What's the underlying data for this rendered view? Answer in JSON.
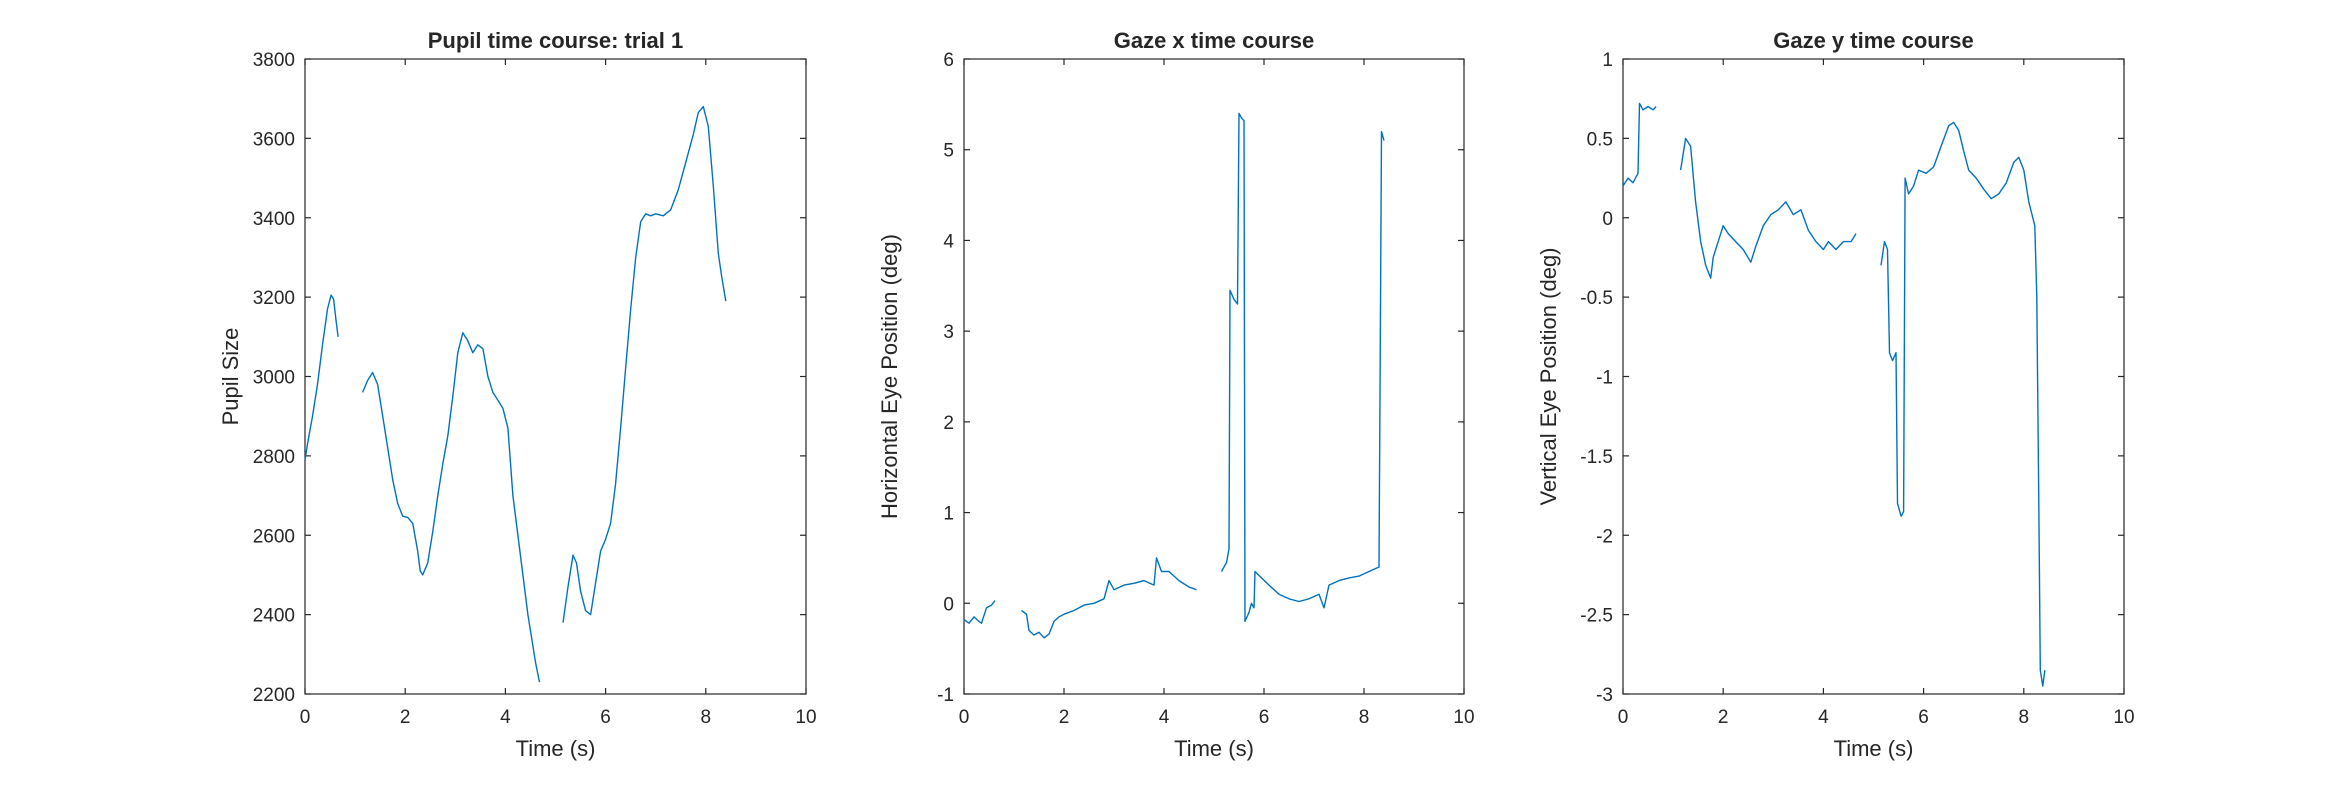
{
  "figure": {
    "line_color": "#0072BD",
    "axes_color": "#262626",
    "background": "#ffffff"
  },
  "chart_data": [
    {
      "type": "line",
      "title": "Pupil time course: trial 1",
      "xlabel": "Time (s)",
      "ylabel": "Pupil Size",
      "xlim": [
        0,
        10
      ],
      "ylim": [
        2200,
        3800
      ],
      "xticks": [
        0,
        2,
        4,
        6,
        8,
        10
      ],
      "yticks": [
        2200,
        2400,
        2600,
        2800,
        3000,
        3200,
        3400,
        3600,
        3800
      ],
      "grid": false,
      "segments": [
        [
          [
            0.0,
            2790
          ],
          [
            0.05,
            2830
          ],
          [
            0.15,
            2900
          ],
          [
            0.25,
            2980
          ],
          [
            0.35,
            3080
          ],
          [
            0.45,
            3170
          ],
          [
            0.52,
            3205
          ],
          [
            0.57,
            3195
          ],
          [
            0.62,
            3140
          ],
          [
            0.66,
            3100
          ]
        ],
        [
          [
            1.15,
            2960
          ],
          [
            1.25,
            2990
          ],
          [
            1.35,
            3010
          ],
          [
            1.45,
            2980
          ],
          [
            1.55,
            2900
          ],
          [
            1.65,
            2820
          ],
          [
            1.75,
            2740
          ],
          [
            1.85,
            2680
          ],
          [
            1.95,
            2648
          ],
          [
            2.05,
            2645
          ],
          [
            2.15,
            2630
          ],
          [
            2.25,
            2560
          ],
          [
            2.3,
            2510
          ],
          [
            2.35,
            2500
          ],
          [
            2.45,
            2530
          ],
          [
            2.55,
            2610
          ],
          [
            2.65,
            2700
          ],
          [
            2.75,
            2780
          ],
          [
            2.85,
            2850
          ],
          [
            2.95,
            2950
          ],
          [
            3.05,
            3060
          ],
          [
            3.15,
            3110
          ],
          [
            3.25,
            3090
          ],
          [
            3.35,
            3060
          ],
          [
            3.45,
            3080
          ],
          [
            3.55,
            3070
          ],
          [
            3.65,
            3000
          ],
          [
            3.75,
            2960
          ],
          [
            3.85,
            2940
          ],
          [
            3.95,
            2920
          ],
          [
            4.05,
            2870
          ],
          [
            4.15,
            2700
          ],
          [
            4.3,
            2550
          ],
          [
            4.45,
            2400
          ],
          [
            4.6,
            2280
          ],
          [
            4.68,
            2230
          ]
        ],
        [
          [
            5.15,
            2380
          ],
          [
            5.25,
            2470
          ],
          [
            5.35,
            2550
          ],
          [
            5.42,
            2530
          ],
          [
            5.5,
            2460
          ],
          [
            5.6,
            2410
          ],
          [
            5.7,
            2400
          ],
          [
            5.8,
            2480
          ],
          [
            5.9,
            2560
          ],
          [
            6.0,
            2590
          ],
          [
            6.1,
            2630
          ],
          [
            6.2,
            2730
          ],
          [
            6.3,
            2870
          ],
          [
            6.4,
            3020
          ],
          [
            6.5,
            3170
          ],
          [
            6.6,
            3300
          ],
          [
            6.7,
            3390
          ],
          [
            6.8,
            3410
          ],
          [
            6.9,
            3405
          ],
          [
            7.0,
            3410
          ],
          [
            7.15,
            3405
          ],
          [
            7.3,
            3420
          ],
          [
            7.45,
            3470
          ],
          [
            7.6,
            3540
          ],
          [
            7.75,
            3610
          ],
          [
            7.85,
            3665
          ],
          [
            7.95,
            3680
          ],
          [
            8.05,
            3630
          ],
          [
            8.15,
            3480
          ],
          [
            8.25,
            3310
          ],
          [
            8.32,
            3250
          ],
          [
            8.4,
            3190
          ]
        ]
      ]
    },
    {
      "type": "line",
      "title": "Gaze x time course",
      "xlabel": "Time (s)",
      "ylabel": "Horizontal Eye Position (deg)",
      "xlim": [
        0,
        10
      ],
      "ylim": [
        -1,
        6
      ],
      "xticks": [
        0,
        2,
        4,
        6,
        8,
        10
      ],
      "yticks": [
        -1,
        0,
        1,
        2,
        3,
        4,
        5,
        6
      ],
      "grid": false,
      "segments": [
        [
          [
            0.0,
            -0.18
          ],
          [
            0.1,
            -0.22
          ],
          [
            0.2,
            -0.15
          ],
          [
            0.3,
            -0.2
          ],
          [
            0.35,
            -0.22
          ],
          [
            0.45,
            -0.05
          ],
          [
            0.55,
            -0.02
          ],
          [
            0.62,
            0.03
          ]
        ],
        [
          [
            1.15,
            -0.08
          ],
          [
            1.25,
            -0.12
          ],
          [
            1.3,
            -0.3
          ],
          [
            1.4,
            -0.35
          ],
          [
            1.5,
            -0.32
          ],
          [
            1.6,
            -0.38
          ],
          [
            1.7,
            -0.34
          ],
          [
            1.8,
            -0.2
          ],
          [
            1.9,
            -0.15
          ],
          [
            2.0,
            -0.12
          ],
          [
            2.2,
            -0.08
          ],
          [
            2.4,
            -0.02
          ],
          [
            2.6,
            0.0
          ],
          [
            2.8,
            0.05
          ],
          [
            2.9,
            0.25
          ],
          [
            3.0,
            0.15
          ],
          [
            3.2,
            0.2
          ],
          [
            3.4,
            0.22
          ],
          [
            3.6,
            0.25
          ],
          [
            3.8,
            0.2
          ],
          [
            3.85,
            0.5
          ],
          [
            3.95,
            0.35
          ],
          [
            4.1,
            0.35
          ],
          [
            4.3,
            0.25
          ],
          [
            4.5,
            0.18
          ],
          [
            4.65,
            0.15
          ]
        ],
        [
          [
            5.15,
            0.35
          ],
          [
            5.25,
            0.45
          ],
          [
            5.3,
            0.6
          ],
          [
            5.32,
            3.45
          ],
          [
            5.4,
            3.35
          ],
          [
            5.47,
            3.3
          ],
          [
            5.5,
            5.4
          ],
          [
            5.55,
            5.35
          ],
          [
            5.6,
            5.32
          ],
          [
            5.62,
            -0.2
          ],
          [
            5.7,
            -0.1
          ],
          [
            5.75,
            0.0
          ],
          [
            5.8,
            -0.05
          ],
          [
            5.82,
            0.35
          ],
          [
            5.95,
            0.28
          ],
          [
            6.1,
            0.2
          ],
          [
            6.3,
            0.1
          ],
          [
            6.5,
            0.05
          ],
          [
            6.7,
            0.02
          ],
          [
            6.9,
            0.05
          ],
          [
            7.1,
            0.1
          ],
          [
            7.2,
            -0.05
          ],
          [
            7.3,
            0.2
          ],
          [
            7.5,
            0.25
          ],
          [
            7.7,
            0.28
          ],
          [
            7.9,
            0.3
          ],
          [
            8.1,
            0.35
          ],
          [
            8.3,
            0.4
          ],
          [
            8.35,
            5.2
          ],
          [
            8.4,
            5.1
          ]
        ]
      ]
    },
    {
      "type": "line",
      "title": "Gaze y time course",
      "xlabel": "Time (s)",
      "ylabel": "Vertical Eye Position (deg)",
      "xlim": [
        0,
        10
      ],
      "ylim": [
        -3,
        1
      ],
      "xticks": [
        0,
        2,
        4,
        6,
        8,
        10
      ],
      "yticks": [
        -3,
        -2.5,
        -2,
        -1.5,
        -1,
        -0.5,
        0,
        0.5,
        1
      ],
      "grid": false,
      "segments": [
        [
          [
            0.0,
            0.2
          ],
          [
            0.1,
            0.25
          ],
          [
            0.2,
            0.22
          ],
          [
            0.3,
            0.28
          ],
          [
            0.33,
            0.72
          ],
          [
            0.4,
            0.68
          ],
          [
            0.5,
            0.7
          ],
          [
            0.6,
            0.68
          ],
          [
            0.66,
            0.7
          ]
        ],
        [
          [
            1.15,
            0.3
          ],
          [
            1.25,
            0.5
          ],
          [
            1.35,
            0.45
          ],
          [
            1.45,
            0.1
          ],
          [
            1.55,
            -0.15
          ],
          [
            1.65,
            -0.3
          ],
          [
            1.75,
            -0.38
          ],
          [
            1.8,
            -0.25
          ],
          [
            1.9,
            -0.15
          ],
          [
            2.0,
            -0.05
          ],
          [
            2.1,
            -0.1
          ],
          [
            2.25,
            -0.15
          ],
          [
            2.4,
            -0.2
          ],
          [
            2.55,
            -0.28
          ],
          [
            2.65,
            -0.18
          ],
          [
            2.8,
            -0.05
          ],
          [
            2.95,
            0.02
          ],
          [
            3.1,
            0.05
          ],
          [
            3.25,
            0.1
          ],
          [
            3.4,
            0.02
          ],
          [
            3.55,
            0.05
          ],
          [
            3.7,
            -0.08
          ],
          [
            3.85,
            -0.15
          ],
          [
            4.0,
            -0.2
          ],
          [
            4.1,
            -0.15
          ],
          [
            4.25,
            -0.2
          ],
          [
            4.4,
            -0.15
          ],
          [
            4.55,
            -0.15
          ],
          [
            4.65,
            -0.1
          ]
        ],
        [
          [
            5.15,
            -0.3
          ],
          [
            5.22,
            -0.15
          ],
          [
            5.28,
            -0.2
          ],
          [
            5.32,
            -0.85
          ],
          [
            5.38,
            -0.9
          ],
          [
            5.45,
            -0.85
          ],
          [
            5.48,
            -1.8
          ],
          [
            5.55,
            -1.88
          ],
          [
            5.6,
            -1.85
          ],
          [
            5.63,
            0.25
          ],
          [
            5.7,
            0.15
          ],
          [
            5.8,
            0.2
          ],
          [
            5.9,
            0.3
          ],
          [
            6.05,
            0.28
          ],
          [
            6.2,
            0.32
          ],
          [
            6.35,
            0.45
          ],
          [
            6.5,
            0.58
          ],
          [
            6.6,
            0.6
          ],
          [
            6.7,
            0.55
          ],
          [
            6.8,
            0.42
          ],
          [
            6.9,
            0.3
          ],
          [
            7.05,
            0.25
          ],
          [
            7.2,
            0.18
          ],
          [
            7.35,
            0.12
          ],
          [
            7.5,
            0.15
          ],
          [
            7.65,
            0.22
          ],
          [
            7.8,
            0.35
          ],
          [
            7.9,
            0.38
          ],
          [
            8.0,
            0.3
          ],
          [
            8.1,
            0.1
          ],
          [
            8.22,
            -0.05
          ],
          [
            8.26,
            -0.5
          ],
          [
            8.3,
            -1.8
          ],
          [
            8.33,
            -2.85
          ],
          [
            8.38,
            -2.95
          ],
          [
            8.42,
            -2.85
          ]
        ]
      ]
    }
  ]
}
